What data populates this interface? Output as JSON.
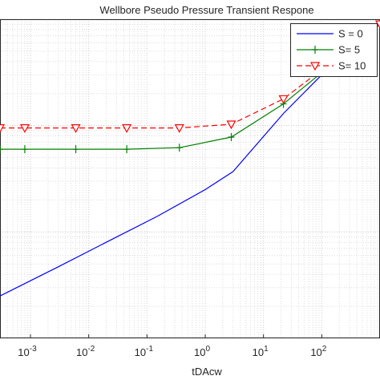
{
  "chart_data": {
    "type": "line",
    "title": "Wellbore Pseudo Pressure Transient Respone",
    "xlabel": "tDAcw",
    "ylabel": "",
    "xscale": "log",
    "yscale": "log",
    "xlim": [
      0.0003,
      1000
    ],
    "ylim": [
      0.01,
      10
    ],
    "grid": true,
    "legend_position": "top-right",
    "x_ticks": [
      {
        "value": 0.001,
        "base": "10",
        "exp": "-3"
      },
      {
        "value": 0.01,
        "base": "10",
        "exp": "-2"
      },
      {
        "value": 0.1,
        "base": "10",
        "exp": "-1"
      },
      {
        "value": 1,
        "base": "10",
        "exp": "0"
      },
      {
        "value": 10,
        "base": "10",
        "exp": "1"
      },
      {
        "value": 100,
        "base": "10",
        "exp": "2"
      }
    ],
    "series": [
      {
        "name": "S = 0",
        "color": "#0000ff",
        "dash": "solid",
        "marker": "none",
        "x": [
          0.0003,
          0.003,
          0.02,
          0.15,
          1,
          3,
          22,
          160,
          1000
        ],
        "y": [
          0.025,
          0.047,
          0.08,
          0.14,
          0.25,
          0.37,
          1.3,
          3.9,
          9
        ]
      },
      {
        "name": "S= 5",
        "color": "#008000",
        "dash": "solid",
        "marker": "plus",
        "x": [
          0.0003,
          0.0008,
          0.006,
          0.045,
          0.36,
          2.8,
          22,
          160,
          1000
        ],
        "y": [
          0.6,
          0.6,
          0.6,
          0.6,
          0.62,
          0.78,
          1.6,
          3.9,
          9
        ]
      },
      {
        "name": "S= 10",
        "color": "#ff0000",
        "dash": "dashed",
        "marker": "triangle-down",
        "x": [
          0.0003,
          0.0008,
          0.006,
          0.045,
          0.36,
          2.8,
          22,
          160,
          1000
        ],
        "y": [
          0.95,
          0.95,
          0.95,
          0.95,
          0.95,
          1.03,
          1.78,
          4.1,
          9
        ]
      }
    ]
  }
}
